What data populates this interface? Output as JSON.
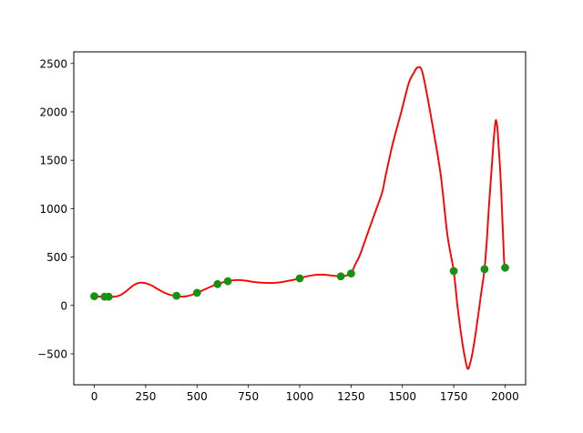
{
  "figure": {
    "background": "#ffffff",
    "frame_color": "#000000",
    "tick_color": "#000000",
    "label_color": "#000000"
  },
  "chart_data": {
    "type": "line",
    "title": "",
    "xlabel": "",
    "ylabel": "",
    "grid": false,
    "legend": null,
    "xlim": [
      -100,
      2100
    ],
    "ylim": [
      -820,
      2620
    ],
    "x_ticks": [
      0,
      250,
      500,
      750,
      1000,
      1250,
      1500,
      1750,
      2000
    ],
    "y_ticks": [
      -500,
      0,
      500,
      1000,
      1500,
      2000,
      2500
    ],
    "series": [
      {
        "name": "interpolated-curve",
        "type": "line",
        "color": "#ff0000",
        "line_width": 1.9,
        "points": [
          [
            0,
            95
          ],
          [
            30,
            90
          ],
          [
            55,
            89
          ],
          [
            75,
            89
          ],
          [
            105,
            92
          ],
          [
            130,
            110
          ],
          [
            160,
            155
          ],
          [
            190,
            207
          ],
          [
            218,
            234
          ],
          [
            248,
            230
          ],
          [
            278,
            207
          ],
          [
            310,
            167
          ],
          [
            345,
            128
          ],
          [
            375,
            106
          ],
          [
            400,
            98
          ],
          [
            425,
            90
          ],
          [
            450,
            95
          ],
          [
            475,
            110
          ],
          [
            500,
            130
          ],
          [
            535,
            163
          ],
          [
            570,
            196
          ],
          [
            600,
            220
          ],
          [
            628,
            240
          ],
          [
            650,
            250
          ],
          [
            675,
            259
          ],
          [
            700,
            263
          ],
          [
            735,
            256
          ],
          [
            770,
            245
          ],
          [
            805,
            236
          ],
          [
            845,
            232
          ],
          [
            880,
            234
          ],
          [
            920,
            244
          ],
          [
            960,
            260
          ],
          [
            1000,
            280
          ],
          [
            1030,
            298
          ],
          [
            1060,
            311
          ],
          [
            1090,
            318
          ],
          [
            1120,
            317
          ],
          [
            1150,
            310
          ],
          [
            1180,
            303
          ],
          [
            1205,
            299
          ],
          [
            1228,
            310
          ],
          [
            1250,
            330
          ],
          [
            1272,
            430
          ],
          [
            1293,
            520
          ],
          [
            1335,
            770
          ],
          [
            1380,
            1035
          ],
          [
            1403,
            1180
          ],
          [
            1420,
            1357
          ],
          [
            1453,
            1670
          ],
          [
            1493,
            1985
          ],
          [
            1531,
            2295
          ],
          [
            1556,
            2405
          ],
          [
            1576,
            2460
          ],
          [
            1598,
            2405
          ],
          [
            1637,
            1980
          ],
          [
            1686,
            1357
          ],
          [
            1719,
            732
          ],
          [
            1750,
            355
          ],
          [
            1768,
            0
          ],
          [
            1788,
            -330
          ],
          [
            1803,
            -520
          ],
          [
            1818,
            -655
          ],
          [
            1834,
            -565
          ],
          [
            1850,
            -385
          ],
          [
            1866,
            -150
          ],
          [
            1885,
            145
          ],
          [
            1900,
            375
          ],
          [
            1912,
            700
          ],
          [
            1922,
            1045
          ],
          [
            1933,
            1360
          ],
          [
            1944,
            1700
          ],
          [
            1951,
            1855
          ],
          [
            1956,
            1915
          ],
          [
            1962,
            1845
          ],
          [
            1968,
            1670
          ],
          [
            1977,
            1360
          ],
          [
            1984,
            1045
          ],
          [
            1990,
            730
          ],
          [
            1995,
            470
          ],
          [
            2000,
            390
          ]
        ]
      },
      {
        "name": "data-points",
        "type": "scatter",
        "color": "#129412",
        "marker": "circle",
        "marker_radius": 4.4,
        "points": [
          [
            0,
            95
          ],
          [
            50,
            90
          ],
          [
            70,
            90
          ],
          [
            400,
            100
          ],
          [
            500,
            130
          ],
          [
            600,
            220
          ],
          [
            650,
            250
          ],
          [
            1000,
            280
          ],
          [
            1200,
            300
          ],
          [
            1250,
            330
          ],
          [
            1750,
            355
          ],
          [
            1900,
            375
          ],
          [
            2000,
            390
          ]
        ]
      }
    ]
  }
}
